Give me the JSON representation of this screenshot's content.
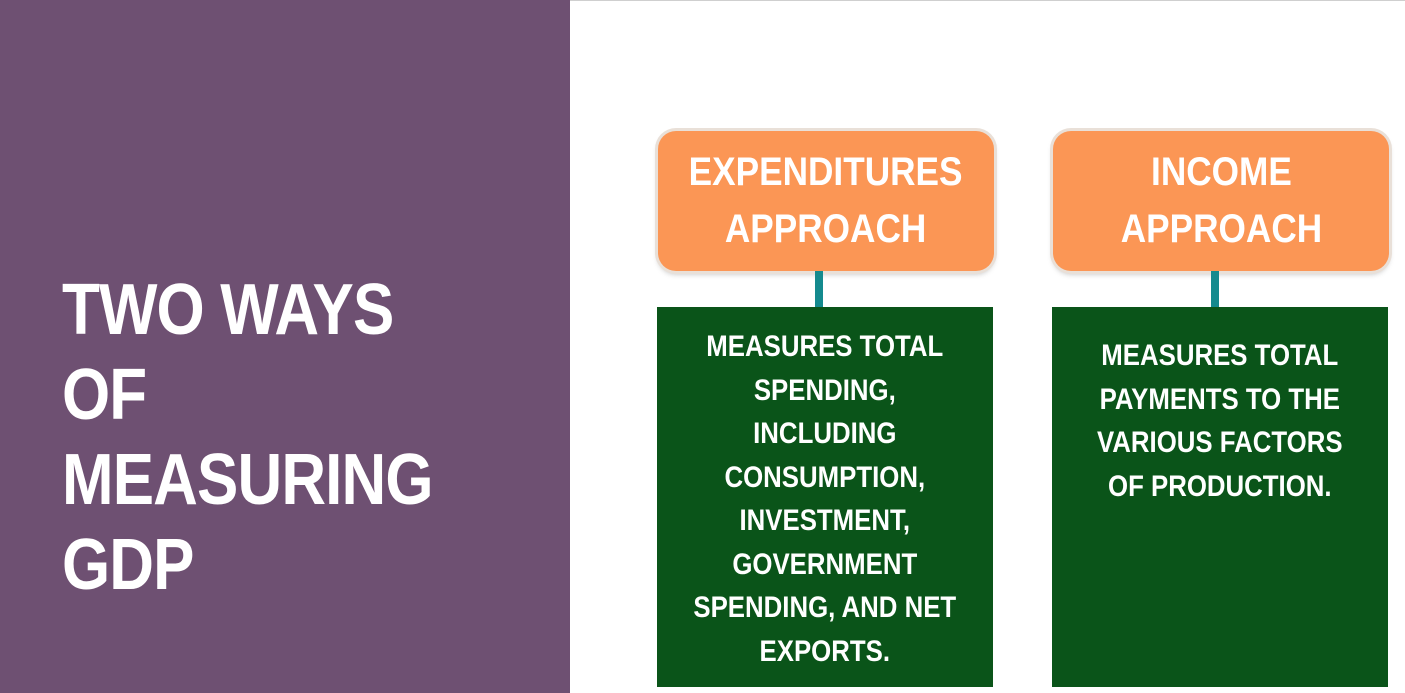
{
  "slide": {
    "title": "TWO WAYS OF\nMEASURING\nGDP"
  },
  "approaches": [
    {
      "label": "EXPENDITURES\nAPPROACH",
      "description": "MEASURES TOTAL\nSPENDING,\nINCLUDING\nCONSUMPTION,\nINVESTMENT,\nGOVERNMENT\nSPENDING, AND NET\nEXPORTS."
    },
    {
      "label": "INCOME\nAPPROACH",
      "description": "MEASURES TOTAL\nPAYMENTS TO THE\nVARIOUS FACTORS\nOF PRODUCTION."
    }
  ],
  "colors": {
    "left_panel": "#6e5072",
    "approach_box": "#fb9655",
    "connector": "#148a8e",
    "description_box": "#0a5419",
    "text": "#ffffff"
  }
}
